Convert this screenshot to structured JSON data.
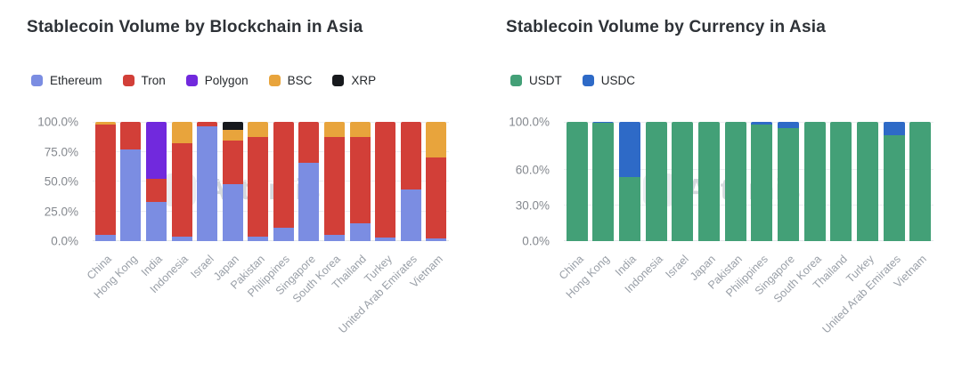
{
  "watermark": "Artemis",
  "chart_data": [
    {
      "type": "bar",
      "stacked": true,
      "stack_unit": "percent",
      "title": "Stablecoin Volume by Blockchain in Asia",
      "legend_position": "top-left",
      "grid": true,
      "ylim": [
        0,
        100
      ],
      "y_ticks": [
        {
          "label": "100.0%",
          "value": 100
        },
        {
          "label": "75.0%",
          "value": 75
        },
        {
          "label": "50.0%",
          "value": 50
        },
        {
          "label": "25.0%",
          "value": 25
        },
        {
          "label": "0.0%",
          "value": 0
        }
      ],
      "categories": [
        "China",
        "Hong Kong",
        "India",
        "Indonesia",
        "Israel",
        "Japan",
        "Pakistan",
        "Philippines",
        "Singapore",
        "South Korea",
        "Thailand",
        "Turkey",
        "United Arab Emirates",
        "Vietnam"
      ],
      "series": [
        {
          "name": "Ethereum",
          "color": "#7b8de2",
          "values": [
            5,
            77,
            33,
            4,
            96,
            48,
            4,
            11,
            66,
            5,
            15,
            3,
            43,
            2
          ]
        },
        {
          "name": "Tron",
          "color": "#d23f38",
          "values": [
            93,
            23,
            19,
            78,
            4,
            36,
            83,
            89,
            34,
            82,
            72,
            97,
            57,
            68
          ]
        },
        {
          "name": "Polygon",
          "color": "#7129dd",
          "values": [
            0,
            0,
            48,
            0,
            0,
            0,
            0,
            0,
            0,
            0,
            0,
            0,
            0,
            0
          ]
        },
        {
          "name": "BSC",
          "color": "#e8a43c",
          "values": [
            2,
            0,
            0,
            18,
            0,
            9,
            13,
            0,
            0,
            13,
            13,
            0,
            0,
            30
          ]
        },
        {
          "name": "XRP",
          "color": "#17191d",
          "values": [
            0,
            0,
            0,
            0,
            0,
            7,
            0,
            0,
            0,
            0,
            0,
            0,
            0,
            0
          ]
        }
      ]
    },
    {
      "type": "bar",
      "stacked": true,
      "stack_unit": "percent",
      "title": "Stablecoin Volume by Currency in Asia",
      "legend_position": "top-left",
      "grid": true,
      "ylim": [
        0,
        100
      ],
      "y_ticks": [
        {
          "label": "100.0%",
          "value": 100
        },
        {
          "label": "60.0%",
          "value": 60
        },
        {
          "label": "30.0%",
          "value": 30
        },
        {
          "label": "0.0%",
          "value": 0
        }
      ],
      "categories": [
        "China",
        "Hong Kong",
        "India",
        "Indonesia",
        "Israel",
        "Japan",
        "Pakistan",
        "Philippines",
        "Singapore",
        "South Korea",
        "Thailand",
        "Turkey",
        "United Arab Emirates",
        "Vietnam"
      ],
      "series": [
        {
          "name": "USDT",
          "color": "#43a077",
          "values": [
            100,
            99,
            54,
            100,
            100,
            100,
            100,
            98,
            95,
            100,
            100,
            100,
            89,
            100
          ]
        },
        {
          "name": "USDC",
          "color": "#2e6ac7",
          "values": [
            0,
            1,
            46,
            0,
            0,
            0,
            0,
            2,
            5,
            0,
            0,
            0,
            11,
            0
          ]
        }
      ]
    }
  ]
}
